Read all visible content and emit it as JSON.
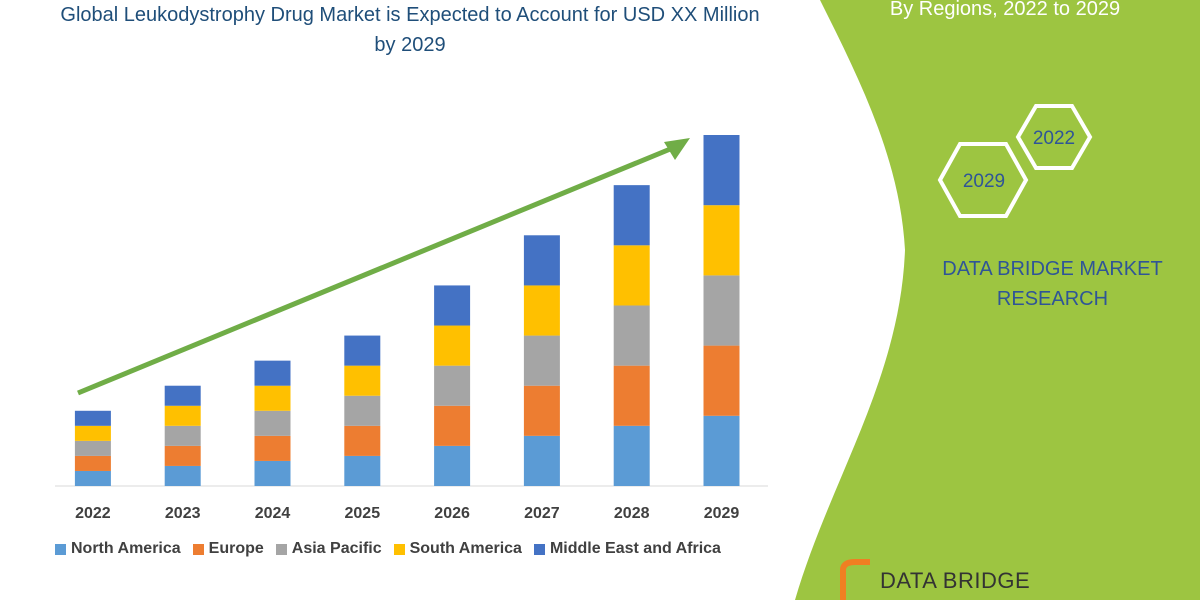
{
  "chart_data": {
    "type": "bar",
    "stacked": true,
    "title": "Global Leukodystrophy Drug Market is Expected to Account for USD XX Million by 2029",
    "subtitle": "By Regions, 2022 to 2029",
    "categories": [
      "2022",
      "2023",
      "2024",
      "2025",
      "2026",
      "2027",
      "2028",
      "2029"
    ],
    "series": [
      {
        "name": "North America",
        "color": "#5b9bd5",
        "values": [
          15,
          20,
          25,
          30,
          40,
          50,
          60,
          70
        ]
      },
      {
        "name": "Europe",
        "color": "#ed7d31",
        "values": [
          15,
          20,
          25,
          30,
          40,
          50,
          60,
          70
        ]
      },
      {
        "name": "Asia Pacific",
        "color": "#a5a5a5",
        "values": [
          15,
          20,
          25,
          30,
          40,
          50,
          60,
          70
        ]
      },
      {
        "name": "South America",
        "color": "#ffc000",
        "values": [
          15,
          20,
          25,
          30,
          40,
          50,
          60,
          70
        ]
      },
      {
        "name": "Middle East and Africa",
        "color": "#4472c4",
        "values": [
          15,
          20,
          25,
          30,
          40,
          50,
          60,
          70
        ]
      }
    ]
  },
  "sidebar": {
    "hexagons": [
      "2022",
      "2029"
    ],
    "brand": "DATA BRIDGE MARKET RESEARCH",
    "logo": "DATA BRIDGE"
  }
}
